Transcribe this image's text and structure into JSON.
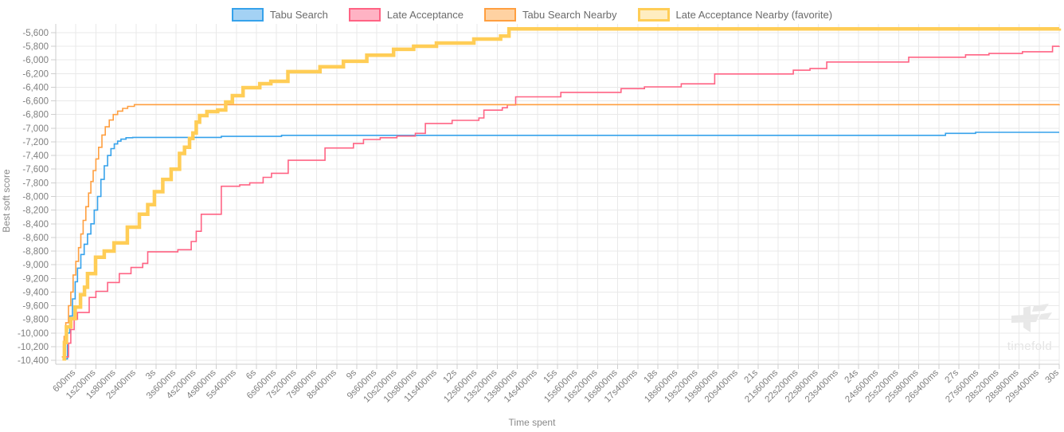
{
  "legend": {
    "items": [
      {
        "label": "Tabu Search",
        "color": "#36A2EB",
        "fill": "#A4D2F4",
        "favorite": false
      },
      {
        "label": "Late Acceptance",
        "color": "#FF6384",
        "fill": "#FFB3C4",
        "favorite": false
      },
      {
        "label": "Tabu Search Nearby",
        "color": "#FF9F40",
        "fill": "#FFD2A2",
        "favorite": false
      },
      {
        "label": "Late Acceptance Nearby (favorite)",
        "color": "#FFCD56",
        "fill": "#FFEDC0",
        "favorite": true
      }
    ]
  },
  "watermark": {
    "text": "timefold"
  },
  "chart_data": {
    "type": "line",
    "step": "after",
    "title": "",
    "xlabel": "Time spent",
    "ylabel": "Best soft score",
    "x_unit": "seconds",
    "xlim": [
      0,
      30
    ],
    "ylim": [
      -10458,
      -5472
    ],
    "grid": true,
    "legend_position": "top",
    "x_tick_interval_s": 0.6,
    "x_tick_labels": [
      "600ms",
      "1s200ms",
      "1s800ms",
      "2s400ms",
      "3s",
      "3s600ms",
      "4s200ms",
      "4s800ms",
      "5s400ms",
      "6s",
      "6s600ms",
      "7s200ms",
      "7s800ms",
      "8s400ms",
      "9s",
      "9s600ms",
      "10s200ms",
      "10s800ms",
      "11s400ms",
      "12s",
      "12s600ms",
      "13s200ms",
      "13s800ms",
      "14s400ms",
      "15s",
      "15s600ms",
      "16s200ms",
      "16s800ms",
      "17s400ms",
      "18s",
      "18s600ms",
      "19s200ms",
      "19s800ms",
      "20s400ms",
      "21s",
      "21s600ms",
      "22s200ms",
      "22s800ms",
      "23s400ms",
      "24s",
      "24s600ms",
      "25s200ms",
      "25s800ms",
      "26s400ms",
      "27s",
      "27s600ms",
      "28s200ms",
      "28s800ms",
      "29s400ms",
      "30s"
    ],
    "y_tick_values": [
      -5600,
      -5800,
      -6000,
      -6200,
      -6400,
      -6600,
      -6800,
      -7000,
      -7200,
      -7400,
      -7600,
      -7800,
      -8000,
      -8200,
      -8400,
      -8600,
      -8800,
      -9000,
      -9200,
      -9400,
      -9600,
      -9800,
      -10000,
      -10200,
      -10400
    ],
    "y_tick_labels": [
      "-5,600",
      "-5,800",
      "-6,000",
      "-6,200",
      "-6,400",
      "-6,600",
      "-6,800",
      "-7,000",
      "-7,200",
      "-7,400",
      "-7,600",
      "-7,800",
      "-8,000",
      "-8,200",
      "-8,400",
      "-8,600",
      "-8,800",
      "-9,000",
      "-9,200",
      "-9,400",
      "-9,600",
      "-9,800",
      "-10,000",
      "-10,200",
      "-10,400"
    ],
    "series": [
      {
        "name": "Tabu Search",
        "color": "#36A2EB",
        "width": 1.6,
        "points": [
          [
            0.28,
            -10380
          ],
          [
            0.35,
            -10000
          ],
          [
            0.42,
            -9750
          ],
          [
            0.5,
            -9500
          ],
          [
            0.58,
            -9250
          ],
          [
            0.65,
            -9050
          ],
          [
            0.75,
            -8850
          ],
          [
            0.85,
            -8700
          ],
          [
            0.95,
            -8550
          ],
          [
            1.05,
            -8400
          ],
          [
            1.15,
            -8200
          ],
          [
            1.25,
            -8000
          ],
          [
            1.35,
            -7750
          ],
          [
            1.45,
            -7550
          ],
          [
            1.55,
            -7400
          ],
          [
            1.65,
            -7300
          ],
          [
            1.75,
            -7230
          ],
          [
            1.85,
            -7190
          ],
          [
            1.95,
            -7160
          ],
          [
            2.1,
            -7140
          ],
          [
            2.3,
            -7135
          ],
          [
            4.95,
            -7120
          ],
          [
            6.75,
            -7105
          ],
          [
            26.6,
            -7075
          ],
          [
            27.5,
            -7060
          ],
          [
            30,
            -7060
          ]
        ]
      },
      {
        "name": "Late Acceptance",
        "color": "#FF6384",
        "width": 1.6,
        "points": [
          [
            0.3,
            -10350
          ],
          [
            0.38,
            -10150
          ],
          [
            0.45,
            -9950
          ],
          [
            0.55,
            -9800
          ],
          [
            0.65,
            -9700
          ],
          [
            1.0,
            -9480
          ],
          [
            1.2,
            -9390
          ],
          [
            1.55,
            -9260
          ],
          [
            1.9,
            -9130
          ],
          [
            2.25,
            -9040
          ],
          [
            2.6,
            -8980
          ],
          [
            2.75,
            -8810
          ],
          [
            3.65,
            -8780
          ],
          [
            4.05,
            -8660
          ],
          [
            4.2,
            -8510
          ],
          [
            4.35,
            -8260
          ],
          [
            4.95,
            -7850
          ],
          [
            5.5,
            -7830
          ],
          [
            5.8,
            -7800
          ],
          [
            6.2,
            -7720
          ],
          [
            6.45,
            -7660
          ],
          [
            6.95,
            -7470
          ],
          [
            8.05,
            -7290
          ],
          [
            8.9,
            -7225
          ],
          [
            9.2,
            -7165
          ],
          [
            9.7,
            -7140
          ],
          [
            10.2,
            -7115
          ],
          [
            10.75,
            -7075
          ],
          [
            11.05,
            -6930
          ],
          [
            11.85,
            -6885
          ],
          [
            12.65,
            -6850
          ],
          [
            12.8,
            -6735
          ],
          [
            13.35,
            -6700
          ],
          [
            13.5,
            -6660
          ],
          [
            13.75,
            -6540
          ],
          [
            15.1,
            -6475
          ],
          [
            16.9,
            -6420
          ],
          [
            17.6,
            -6395
          ],
          [
            18.7,
            -6350
          ],
          [
            19.7,
            -6205
          ],
          [
            22.05,
            -6150
          ],
          [
            22.55,
            -6125
          ],
          [
            23.05,
            -6030
          ],
          [
            25.5,
            -5960
          ],
          [
            27.2,
            -5925
          ],
          [
            27.9,
            -5905
          ],
          [
            28.9,
            -5880
          ],
          [
            29.8,
            -5800
          ],
          [
            30,
            -5795
          ]
        ]
      },
      {
        "name": "Tabu Search Nearby",
        "color": "#FF9F40",
        "width": 1.6,
        "points": [
          [
            0.18,
            -10350
          ],
          [
            0.25,
            -10050
          ],
          [
            0.3,
            -9850
          ],
          [
            0.38,
            -9600
          ],
          [
            0.45,
            -9400
          ],
          [
            0.52,
            -9150
          ],
          [
            0.6,
            -8950
          ],
          [
            0.68,
            -8750
          ],
          [
            0.75,
            -8550
          ],
          [
            0.82,
            -8350
          ],
          [
            0.9,
            -8150
          ],
          [
            0.98,
            -7950
          ],
          [
            1.05,
            -7780
          ],
          [
            1.12,
            -7620
          ],
          [
            1.2,
            -7450
          ],
          [
            1.28,
            -7280
          ],
          [
            1.38,
            -7100
          ],
          [
            1.48,
            -6980
          ],
          [
            1.6,
            -6880
          ],
          [
            1.72,
            -6800
          ],
          [
            1.85,
            -6750
          ],
          [
            2.0,
            -6710
          ],
          [
            2.15,
            -6680
          ],
          [
            2.35,
            -6655
          ],
          [
            30,
            -6650
          ]
        ]
      },
      {
        "name": "Late Acceptance Nearby (favorite)",
        "color": "#FFCD56",
        "width": 4.5,
        "points": [
          [
            0.2,
            -10380
          ],
          [
            0.26,
            -10140
          ],
          [
            0.32,
            -9910
          ],
          [
            0.45,
            -9790
          ],
          [
            0.58,
            -9620
          ],
          [
            0.74,
            -9440
          ],
          [
            0.86,
            -9330
          ],
          [
            0.95,
            -9130
          ],
          [
            1.19,
            -8890
          ],
          [
            1.45,
            -8800
          ],
          [
            1.74,
            -8680
          ],
          [
            2.14,
            -8450
          ],
          [
            2.5,
            -8260
          ],
          [
            2.75,
            -8120
          ],
          [
            2.95,
            -7930
          ],
          [
            3.2,
            -7750
          ],
          [
            3.45,
            -7600
          ],
          [
            3.7,
            -7370
          ],
          [
            3.85,
            -7280
          ],
          [
            4.0,
            -7150
          ],
          [
            4.1,
            -7070
          ],
          [
            4.2,
            -6910
          ],
          [
            4.3,
            -6815
          ],
          [
            4.52,
            -6757
          ],
          [
            4.84,
            -6733
          ],
          [
            5.08,
            -6616
          ],
          [
            5.28,
            -6523
          ],
          [
            5.6,
            -6406
          ],
          [
            6.1,
            -6348
          ],
          [
            6.43,
            -6313
          ],
          [
            6.94,
            -6172
          ],
          [
            7.9,
            -6100
          ],
          [
            8.6,
            -6020
          ],
          [
            9.3,
            -5930
          ],
          [
            10.1,
            -5845
          ],
          [
            10.7,
            -5799
          ],
          [
            11.38,
            -5752
          ],
          [
            12.5,
            -5694
          ],
          [
            13.3,
            -5650
          ],
          [
            13.55,
            -5545
          ],
          [
            30,
            -5540
          ]
        ]
      }
    ]
  }
}
